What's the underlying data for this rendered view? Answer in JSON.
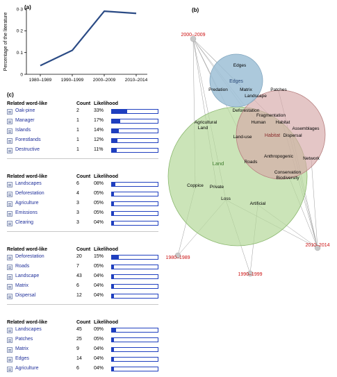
{
  "panels": {
    "a": "(a)",
    "b": "(b)",
    "c": "(c)"
  },
  "chart_data": {
    "type": "line",
    "categories": [
      "1980–1989",
      "1990–1999",
      "2000–2009",
      "2010–2014"
    ],
    "values": [
      0.04,
      0.11,
      0.29,
      0.28
    ],
    "ylabel": "Percentage of the literature",
    "ylim": [
      0,
      0.3
    ],
    "yticks": [
      "0",
      "0·1",
      "0·2",
      "0·3"
    ],
    "tick_values": [
      0,
      0.1,
      0.2,
      0.3
    ],
    "color": "#2b4b85"
  },
  "network": {
    "period_nodes": [
      "2000–2009",
      "2010–2014",
      "1980–1989",
      "1990–1999"
    ],
    "clusters": [
      {
        "name": "Edges",
        "color": "#9ebfd6"
      },
      {
        "name": "Habitat",
        "color": "#d6a7a7"
      },
      {
        "name": "Land",
        "color": "#b5d99a"
      }
    ],
    "words": [
      "Edges",
      "Predation",
      "Matrix",
      "Patches",
      "Landscape",
      "Fragmentation",
      "Habitat",
      "Assemblages",
      "Deforestation",
      "Agricultural",
      "Land",
      "Human",
      "Dispersal",
      "Land-use",
      "Roads",
      "Anthropogenic",
      "Network",
      "Conservation",
      "Biodiversity",
      "Coppice",
      "Private",
      "Loss",
      "Artificial"
    ],
    "colors": {
      "period": "#cc1111",
      "edge": "#999999"
    }
  },
  "tables": {
    "header": {
      "word": "Related word-like",
      "count": "Count",
      "likelihood": "Likelihood"
    },
    "sections": [
      {
        "rows": [
          {
            "word": "Oak-pine",
            "count": "2",
            "likelihood": "33%",
            "fraction": 0.33
          },
          {
            "word": "Manager",
            "count": "1",
            "likelihood": "17%",
            "fraction": 0.17
          },
          {
            "word": "Islands",
            "count": "1",
            "likelihood": "14%",
            "fraction": 0.14
          },
          {
            "word": "Forestlands",
            "count": "1",
            "likelihood": "12%",
            "fraction": 0.12
          },
          {
            "word": "Destructive",
            "count": "1",
            "likelihood": "11%",
            "fraction": 0.11
          }
        ]
      },
      {
        "rows": [
          {
            "word": "Landscapes",
            "count": "6",
            "likelihood": "08%",
            "fraction": 0.08
          },
          {
            "word": "Deforestation",
            "count": "4",
            "likelihood": "05%",
            "fraction": 0.05
          },
          {
            "word": "Agriculture",
            "count": "3",
            "likelihood": "05%",
            "fraction": 0.05
          },
          {
            "word": "Emissions",
            "count": "3",
            "likelihood": "05%",
            "fraction": 0.05
          },
          {
            "word": "Clearing",
            "count": "3",
            "likelihood": "04%",
            "fraction": 0.04
          }
        ]
      },
      {
        "rows": [
          {
            "word": "Deforestation",
            "count": "20",
            "likelihood": "15%",
            "fraction": 0.15
          },
          {
            "word": "Roads",
            "count": "7",
            "likelihood": "05%",
            "fraction": 0.05
          },
          {
            "word": "Landscape",
            "count": "43",
            "likelihood": "04%",
            "fraction": 0.04
          },
          {
            "word": "Matrix",
            "count": "6",
            "likelihood": "04%",
            "fraction": 0.04
          },
          {
            "word": "Dispersal",
            "count": "12",
            "likelihood": "04%",
            "fraction": 0.04
          }
        ]
      },
      {
        "rows": [
          {
            "word": "Landscapes",
            "count": "45",
            "likelihood": "09%",
            "fraction": 0.09
          },
          {
            "word": "Patches",
            "count": "25",
            "likelihood": "05%",
            "fraction": 0.05
          },
          {
            "word": "Matrix",
            "count": "9",
            "likelihood": "04%",
            "fraction": 0.04
          },
          {
            "word": "Edges",
            "count": "14",
            "likelihood": "04%",
            "fraction": 0.04
          },
          {
            "word": "Agriculture",
            "count": "6",
            "likelihood": "04%",
            "fraction": 0.04
          }
        ]
      }
    ],
    "bar_color": "#1f3fbf"
  }
}
